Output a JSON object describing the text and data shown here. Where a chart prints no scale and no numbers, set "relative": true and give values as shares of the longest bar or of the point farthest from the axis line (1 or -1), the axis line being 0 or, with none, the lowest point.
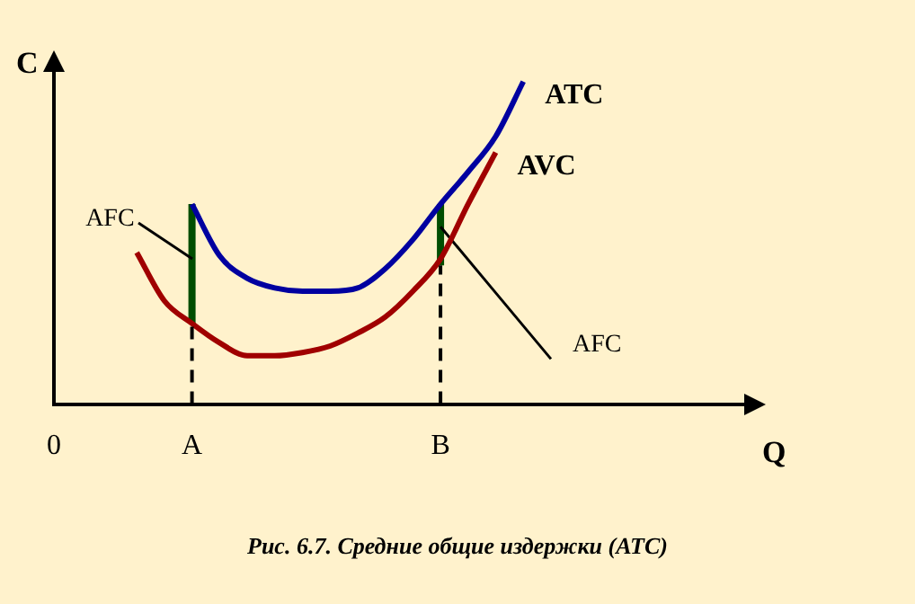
{
  "chart_data": {
    "type": "line",
    "relative": true,
    "xlabel": "Q",
    "ylabel": "C",
    "marker": "none",
    "categories": [
      "0",
      null,
      null,
      null,
      null,
      "A",
      null,
      null,
      null,
      null,
      null,
      null,
      null,
      null,
      "B",
      null,
      null,
      null,
      null,
      null,
      null,
      null,
      null,
      null,
      null,
      null
    ],
    "series": [
      {
        "name": "ATC",
        "color": "#0000a0",
        "values": [
          null,
          null,
          null,
          null,
          null,
          0.62,
          0.46,
          0.39,
          0.36,
          0.35,
          0.35,
          0.36,
          0.42,
          0.51,
          0.62,
          0.72,
          0.83,
          1,
          null,
          null,
          null,
          null,
          null,
          null,
          null,
          null
        ]
      },
      {
        "name": "AVC",
        "color": "#a00000",
        "values": [
          null,
          null,
          null,
          0.47,
          0.32,
          0.25,
          0.19,
          0.15,
          0.15,
          0.16,
          0.18,
          0.22,
          0.27,
          0.35,
          0.45,
          0.62,
          0.78,
          null,
          null,
          null,
          null,
          null,
          null,
          null,
          null,
          null
        ]
      },
      {
        "name": "AFC",
        "color": "#000000",
        "values": [
          null,
          null,
          null,
          null,
          null,
          null,
          null,
          null,
          null,
          null,
          null,
          null,
          null,
          null,
          0.55,
          null,
          null,
          null,
          0.14,
          null,
          null,
          null,
          null,
          null,
          null,
          null
        ]
      },
      {
        "type": "line",
        "color": "#004d00",
        "x": [
          "A",
          "A"
        ],
        "values": [
          0.25,
          0.62
        ]
      },
      {
        "type": "line",
        "color": "#004d00",
        "x": [
          "B",
          "B"
        ],
        "values": [
          0.43,
          0.62
        ]
      }
    ],
    "ref_lines": [
      {
        "axis": "x",
        "value": "A",
        "line_style": "dashed",
        "color": "#000000"
      },
      {
        "axis": "x",
        "value": "B",
        "line_style": "dashed",
        "color": "#000000"
      }
    ],
    "annotations": [
      {
        "text": "AFC",
        "x": "A",
        "y": 0.45
      },
      "Рис. 6.7. Средние общие издержки (ATC)"
    ]
  }
}
